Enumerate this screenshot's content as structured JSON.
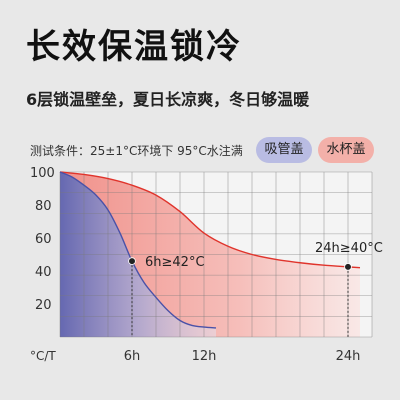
{
  "header": {
    "title": "长效保温锁冷",
    "subtitle": "6层锁温壁垒，夏日长凉爽，冬日够温暖",
    "condition": "测试条件：25±1°C环境下 95°C水注满"
  },
  "legend": [
    {
      "label": "吸管盖",
      "color": "#b9bce3"
    },
    {
      "label": "水杯盖",
      "color": "#f3b0a9"
    }
  ],
  "colors": {
    "blue_line": "#4a52a8",
    "red_line": "#e0342c",
    "grid": "#7a7a7a"
  },
  "chart_data": {
    "type": "area",
    "xlabel": "°C/T",
    "ylabel": "",
    "x_ticks": [
      "6h",
      "12h",
      "24h"
    ],
    "y_ticks": [
      20,
      40,
      60,
      80,
      100
    ],
    "xlim": [
      0,
      26
    ],
    "ylim": [
      0,
      100
    ],
    "series": [
      {
        "name": "吸管盖",
        "color": "#4a52a8",
        "points": [
          [
            0,
            100
          ],
          [
            1,
            97
          ],
          [
            2,
            92
          ],
          [
            3,
            86
          ],
          [
            4,
            77
          ],
          [
            5,
            63
          ],
          [
            6,
            46
          ],
          [
            7,
            33
          ],
          [
            8,
            24
          ],
          [
            9,
            16
          ],
          [
            10,
            10
          ],
          [
            11,
            7
          ],
          [
            12,
            6
          ],
          [
            13,
            5.5
          ]
        ]
      },
      {
        "name": "水杯盖",
        "color": "#e0342c",
        "points": [
          [
            0,
            100
          ],
          [
            2,
            98.5
          ],
          [
            4,
            96
          ],
          [
            6,
            92
          ],
          [
            8,
            86
          ],
          [
            10,
            76
          ],
          [
            12,
            63
          ],
          [
            14,
            55
          ],
          [
            16,
            50
          ],
          [
            18,
            47
          ],
          [
            20,
            45
          ],
          [
            22,
            43.5
          ],
          [
            24,
            42.5
          ],
          [
            25,
            42
          ]
        ]
      }
    ],
    "annotations": [
      {
        "text": "6h≥42°C",
        "x": 6,
        "y": 46
      },
      {
        "text": "24h≥40°C",
        "x": 24,
        "y": 42.5
      }
    ]
  }
}
